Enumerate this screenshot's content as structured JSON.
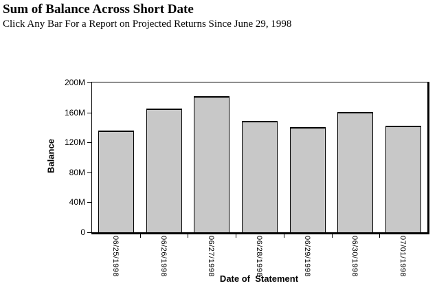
{
  "header": {
    "title": "Sum of Balance Across Short Date",
    "subtitle": "Click Any Bar For a Report on Projected Returns Since June 29, 1998"
  },
  "chart_data": {
    "type": "bar",
    "title": "Sum of Balance Across Short Date",
    "subtitle": "Click Any Bar For a Report on Projected Returns Since June 29, 1998",
    "categories": [
      "06/25/1998",
      "06/26/1998",
      "06/27/1998",
      "06/28/1998",
      "06/29/1998",
      "06/30/1998",
      "07/01/1998"
    ],
    "values": [
      136,
      165,
      182,
      149,
      140,
      161,
      142
    ],
    "unit": "millions",
    "xlabel": "Date of  Statement",
    "ylabel": "Balance",
    "ylim": [
      0,
      200
    ],
    "yticks": [
      {
        "value": 0,
        "label": "0"
      },
      {
        "value": 40,
        "label": "40M"
      },
      {
        "value": 80,
        "label": "80M"
      },
      {
        "value": 120,
        "label": "120M"
      },
      {
        "value": 160,
        "label": "160M"
      },
      {
        "value": 200,
        "label": "200M"
      }
    ],
    "grid": false,
    "legend": false,
    "bar_fill_color": "#c8c8c8",
    "bar_border_color": "#000000",
    "axis_color": "#000000",
    "background_color": "#ffffff",
    "bars_clickable": true
  }
}
